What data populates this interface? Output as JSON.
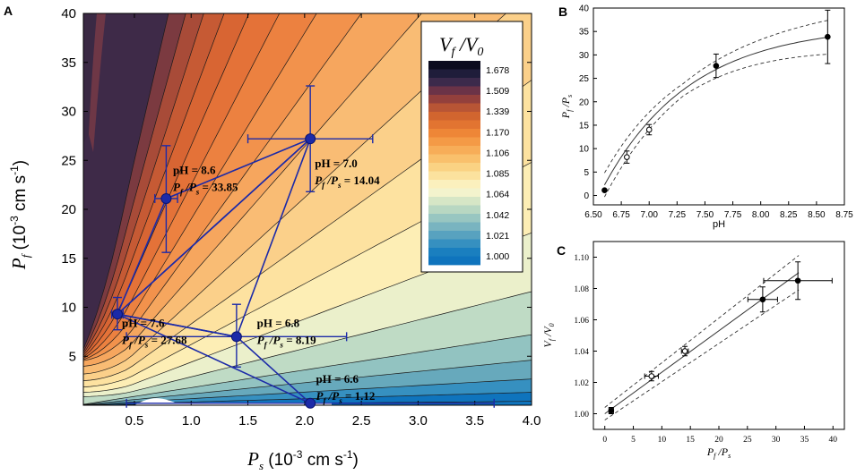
{
  "chart_data": [
    {
      "panel": "A",
      "type": "contour",
      "xlabel": "P_s (10^-3 cm s^-1)",
      "ylabel": "P_f (10^-3 cm s^-1)",
      "xlabel_parts": {
        "main": "P",
        "sub": "s",
        "unit_pre": " (10",
        "unit_sup": "-3",
        "unit_post": " cm s",
        "unit_sup2": "-1",
        "close": ")"
      },
      "ylabel_parts": {
        "main": "P",
        "sub": "f",
        "unit_pre": " (10",
        "unit_sup": "-3",
        "unit_post": " cm s",
        "unit_sup2": "-1",
        "close": ")"
      },
      "xlim": [
        0.05,
        4.0
      ],
      "ylim": [
        0,
        40
      ],
      "xticks": [
        "0.5",
        "1.0",
        "1.5",
        "2.0",
        "2.5",
        "3.0",
        "3.5",
        "4.0"
      ],
      "yticks": [
        "5",
        "10",
        "15",
        "20",
        "25",
        "30",
        "35",
        "40"
      ],
      "colorbar": {
        "title": "V_f /V_0",
        "title_parts": {
          "main1": "V",
          "sub1": "f",
          "slash": " /V",
          "sub2": "0"
        },
        "labels": [
          "1.678",
          "1.509",
          "1.339",
          "1.170",
          "1.106",
          "1.085",
          "1.064",
          "1.042",
          "1.021",
          "1.000"
        ],
        "colors": [
          "#0b0b1e",
          "#1f1d3a",
          "#3c2a4b",
          "#6b3347",
          "#93403c",
          "#b85535",
          "#d1652f",
          "#e27431",
          "#ee8637",
          "#f49a46",
          "#f7ad58",
          "#f9c06c",
          "#fad283",
          "#fbe29e",
          "#fbf0bd",
          "#f3f3cd",
          "#d6e6c6",
          "#b8d7c2",
          "#98c6c1",
          "#79b4c0",
          "#58a2bf",
          "#3690c0",
          "#1a7fbf",
          "#0f74bd"
        ]
      },
      "bands": [
        {
          "k": 0.1,
          "color": "#0f74bd"
        },
        {
          "k": 0.33,
          "color": "#3690c0"
        },
        {
          "k": 0.67,
          "color": "#67a9bc"
        },
        {
          "k": 1.15,
          "color": "#92c3c1"
        },
        {
          "k": 1.8,
          "color": "#bfdbc5"
        },
        {
          "k": 2.9,
          "color": "#ebf0cb"
        },
        {
          "k": 4.4,
          "color": "#fdeeb5"
        },
        {
          "k": 6.2,
          "color": "#fde2a0"
        },
        {
          "k": 8.3,
          "color": "#fbd08a"
        },
        {
          "k": 10.6,
          "color": "#f9bc74"
        },
        {
          "k": 13.2,
          "color": "#f6a65e"
        },
        {
          "k": 16.0,
          "color": "#f2924c"
        },
        {
          "k": 19.0,
          "color": "#ec8140"
        },
        {
          "k": 22.5,
          "color": "#e47238"
        },
        {
          "k": 26.5,
          "color": "#d86533"
        },
        {
          "k": 31.0,
          "color": "#c65a34"
        },
        {
          "k": 36.0,
          "color": "#a84b38"
        },
        {
          "k": 42.0,
          "color": "#7b3a40"
        },
        {
          "k": 50.0,
          "color": "#3e2a48"
        }
      ],
      "points": [
        {
          "pH": "pH = 8.6",
          "ratio": "P_f /P_s = 33.85",
          "ratio_value": "33.85",
          "x": 0.78,
          "y": 21.1,
          "xerr": 0.1,
          "yerr_lo": 5.5,
          "yerr_hi": 5.4,
          "lx": 0.84,
          "ly": 23.6
        },
        {
          "pH": "pH = 7.0",
          "ratio": "P_f /P_s = 14.04",
          "ratio_value": "14.04",
          "x": 2.05,
          "y": 27.2,
          "xerr": 0.55,
          "yerr_lo": 5.4,
          "yerr_hi": 5.4,
          "lx": 2.09,
          "ly": 24.3
        },
        {
          "pH": "pH = 7.6",
          "ratio": "P_f /P_s = 27.68",
          "ratio_value": "27.68",
          "x": 0.35,
          "y": 9.3,
          "xerr": 0.05,
          "yerr_lo": 1.6,
          "yerr_hi": 1.7,
          "lx": 0.39,
          "ly": 8.0
        },
        {
          "pH": "pH = 6.8",
          "ratio": "P_f /P_s = 8.19",
          "ratio_value": "8.19",
          "x": 1.4,
          "y": 7.0,
          "xerr": 0.97,
          "yerr_lo": 3.1,
          "yerr_hi": 3.3,
          "lx": 1.58,
          "ly": 8.0
        },
        {
          "pH": "pH = 6.6",
          "ratio": "P_f /P_s = 1.12",
          "ratio_value": "1.12",
          "x": 2.05,
          "y": 0.2,
          "xerr": 1.62,
          "yerr_lo": 0,
          "yerr_hi": 0,
          "lx": 2.1,
          "ly": 2.3
        }
      ],
      "triangles": [
        [
          "pH = 8.6",
          "pH = 7.6",
          "pH = 7.0"
        ],
        [
          "pH = 7.6",
          "pH = 7.0",
          "pH = 6.8"
        ],
        [
          "pH = 7.6",
          "pH = 6.8",
          "pH = 6.6"
        ]
      ]
    },
    {
      "panel": "B",
      "type": "scatter",
      "xlabel": "pH",
      "ylabel": "P_f /P_s",
      "ylabel_parts": {
        "main": "P",
        "sub": "f",
        "slash": " /P",
        "sub2": "s"
      },
      "xlim": [
        6.5,
        8.75
      ],
      "ylim": [
        -2,
        40
      ],
      "xticks": [
        "6.50",
        "6.75",
        "7.00",
        "7.25",
        "7.50",
        "7.75",
        "8.00",
        "8.25",
        "8.50",
        "8.75"
      ],
      "yticks": [
        "0",
        "5",
        "10",
        "15",
        "20",
        "25",
        "30",
        "35",
        "40"
      ],
      "points": [
        {
          "x": 6.6,
          "y": 1.12,
          "err": 0,
          "filled": true
        },
        {
          "x": 6.8,
          "y": 8.19,
          "err": 1.3,
          "filled": false
        },
        {
          "x": 7.0,
          "y": 14.04,
          "err": 1.1,
          "filled": false
        },
        {
          "x": 7.6,
          "y": 27.68,
          "err": 2.5,
          "filled": true
        },
        {
          "x": 8.6,
          "y": 33.85,
          "err": 5.7,
          "filled": true
        }
      ],
      "fit": {
        "model": "exponential",
        "a": 36.4,
        "b": 1.28,
        "x0": 6.55,
        "range": [
          6.6,
          8.6
        ],
        "band": 2.2
      }
    },
    {
      "panel": "C",
      "type": "scatter",
      "xlabel": "P_f /P_s",
      "xlabel_parts": {
        "main": "P",
        "sub": "f",
        "slash": " /P",
        "sub2": "s"
      },
      "ylabel": "V_f /V_0",
      "ylabel_parts": {
        "main": "V",
        "sub": "f",
        "slash": " /V",
        "sub2": "0"
      },
      "xlim": [
        -2,
        42
      ],
      "ylim": [
        0.99,
        1.11
      ],
      "xticks": [
        "0",
        "5",
        "10",
        "15",
        "20",
        "25",
        "30",
        "35",
        "40"
      ],
      "yticks": [
        "1.00",
        "1.02",
        "1.04",
        "1.06",
        "1.08",
        "1.10"
      ],
      "points": [
        {
          "x": 1.12,
          "y": 1.002,
          "xerr": 0.4,
          "yerr": 0.002,
          "filled": true
        },
        {
          "x": 8.19,
          "y": 1.024,
          "xerr": 1.2,
          "yerr": 0.003,
          "filled": false
        },
        {
          "x": 14.04,
          "y": 1.04,
          "xerr": 0.6,
          "yerr": 0.003,
          "filled": false
        },
        {
          "x": 27.68,
          "y": 1.073,
          "xerr": 2.6,
          "yerr": 0.008,
          "filled": true
        },
        {
          "x": 33.85,
          "y": 1.085,
          "xerr": 6.0,
          "yerr": 0.012,
          "filled": true
        }
      ],
      "fit": {
        "model": "linear",
        "intercept": 1.0,
        "slope": 0.00265,
        "range": [
          0,
          34
        ]
      }
    }
  ]
}
